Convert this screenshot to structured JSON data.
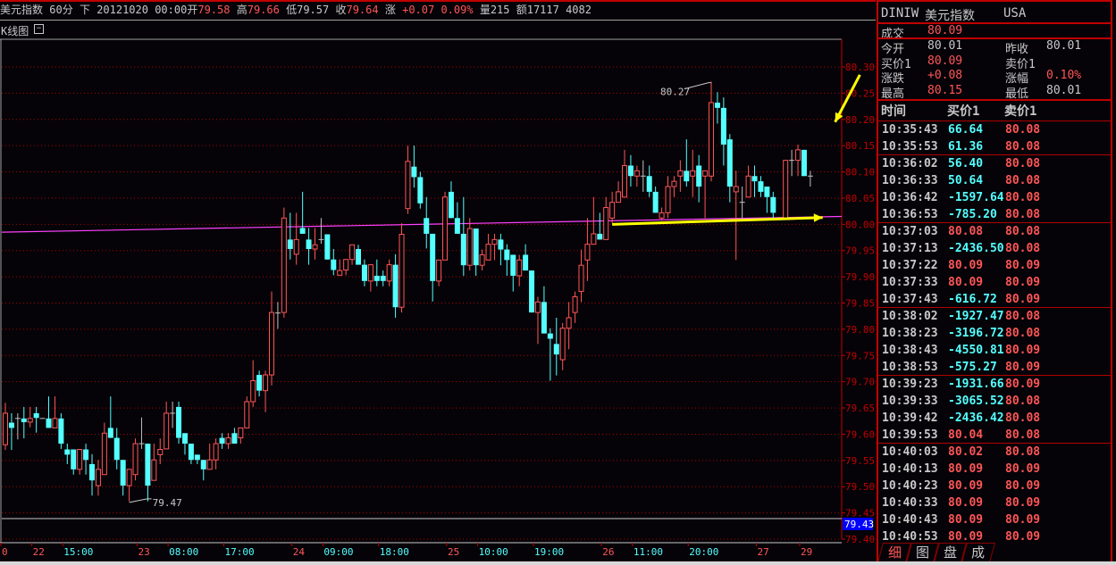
{
  "header": {
    "name": "美元指数",
    "period": "60分",
    "mode": "下",
    "datetime": "20121020 00:00",
    "open_label": "开",
    "open": "79.58",
    "high_label": "高",
    "high": "79.66",
    "low_label": "低",
    "low": "79.57",
    "close_label": "收",
    "close": "79.64",
    "change_label": "涨",
    "change": "+0.07",
    "change_pct": "0.09%",
    "volume": "量215",
    "amount": "额17117 4082"
  },
  "chart_panel": {
    "label": "K线图",
    "collapse_icon": "minus-box-icon"
  },
  "colors": {
    "up": "#ff5656",
    "down": "#54ffff",
    "flat": "#c0c0c0",
    "ma": "#ff40ff",
    "annotation_arrow": "#ffff00",
    "grid": "#b00000",
    "axis": "#c00000"
  },
  "chart_data": {
    "type": "candlestick",
    "ylim": [
      79.4,
      80.3
    ],
    "yticks": [
      "80.30",
      "80.25",
      "80.20",
      "80.15",
      "80.10",
      "80.05",
      "80.00",
      "79.95",
      "79.90",
      "79.85",
      "79.80",
      "79.75",
      "79.70",
      "79.65",
      "79.60",
      "79.55",
      "79.50",
      "79.45",
      "79.40"
    ],
    "current_price_tag": "79.43",
    "grid": "horizontal-dotted",
    "xticks": [
      {
        "label": "0",
        "kind": "date",
        "index": 0
      },
      {
        "label": "22",
        "kind": "date",
        "index": 5
      },
      {
        "label": "15:00",
        "kind": "time",
        "index": 10
      },
      {
        "label": "23",
        "kind": "date",
        "index": 22
      },
      {
        "label": "08:00",
        "kind": "time",
        "index": 27
      },
      {
        "label": "17:00",
        "kind": "time",
        "index": 36
      },
      {
        "label": "24",
        "kind": "date",
        "index": 47
      },
      {
        "label": "09:00",
        "kind": "time",
        "index": 52
      },
      {
        "label": "18:00",
        "kind": "time",
        "index": 61
      },
      {
        "label": "25",
        "kind": "date",
        "index": 72
      },
      {
        "label": "10:00",
        "kind": "time",
        "index": 77
      },
      {
        "label": "19:00",
        "kind": "time",
        "index": 86
      },
      {
        "label": "26",
        "kind": "date",
        "index": 97
      },
      {
        "label": "11:00",
        "kind": "time",
        "index": 102
      },
      {
        "label": "20:00",
        "kind": "time",
        "index": 111
      },
      {
        "label": "27",
        "kind": "date",
        "index": 122
      },
      {
        "label": "29",
        "kind": "date",
        "index": 129
      }
    ],
    "annotations": [
      {
        "label": "80.27",
        "index": 114,
        "value": 80.27
      },
      {
        "label": "79.47",
        "index": 20,
        "value": 79.47
      }
    ],
    "moving_average": {
      "start": 79.985,
      "end": 80.015
    },
    "arrows": [
      {
        "from_index": 138,
        "from_value": 80.285,
        "to_index": 134,
        "to_value": 80.195
      },
      {
        "from_index": 98,
        "from_value": 80.0,
        "to_index": 132,
        "to_value": 80.013
      }
    ],
    "ohlc": [
      [
        79.58,
        79.66,
        79.57,
        79.64
      ],
      [
        79.622,
        79.64,
        79.57,
        79.612
      ],
      [
        79.63,
        79.64,
        79.59,
        79.63
      ],
      [
        79.63,
        79.652,
        79.592,
        79.623
      ],
      [
        79.623,
        79.652,
        79.613,
        79.63
      ],
      [
        79.64,
        79.652,
        79.603,
        79.631
      ],
      [
        79.63,
        79.63,
        79.63,
        79.63
      ],
      [
        79.63,
        79.672,
        79.612,
        79.612
      ],
      [
        79.612,
        79.672,
        79.612,
        79.63
      ],
      [
        79.63,
        79.64,
        79.572,
        79.582
      ],
      [
        79.571,
        79.582,
        79.543,
        79.561
      ],
      [
        79.571,
        79.571,
        79.523,
        79.533
      ],
      [
        79.533,
        79.571,
        79.523,
        79.571
      ],
      [
        79.571,
        79.582,
        79.523,
        79.551
      ],
      [
        79.543,
        79.562,
        79.483,
        79.512
      ],
      [
        79.502,
        79.551,
        79.483,
        79.533
      ],
      [
        79.523,
        79.622,
        79.523,
        79.602
      ],
      [
        79.612,
        79.672,
        79.593,
        79.593
      ],
      [
        79.593,
        79.612,
        79.533,
        79.551
      ],
      [
        79.551,
        79.551,
        79.483,
        79.502
      ],
      [
        79.502,
        79.533,
        79.472,
        79.533
      ],
      [
        79.523,
        79.592,
        79.512,
        79.582
      ],
      [
        79.582,
        79.632,
        79.572,
        79.582
      ],
      [
        79.582,
        79.582,
        79.472,
        79.502
      ],
      [
        79.512,
        79.582,
        79.512,
        79.551
      ],
      [
        79.561,
        79.592,
        79.543,
        79.571
      ],
      [
        79.572,
        79.662,
        79.572,
        79.64
      ],
      [
        79.64,
        79.662,
        79.612,
        79.64
      ],
      [
        79.652,
        79.662,
        79.582,
        79.593
      ],
      [
        79.602,
        79.602,
        79.561,
        79.582
      ],
      [
        79.582,
        79.582,
        79.543,
        79.551
      ],
      [
        79.561,
        79.561,
        79.543,
        79.551
      ],
      [
        79.551,
        79.551,
        79.512,
        79.533
      ],
      [
        79.533,
        79.582,
        79.533,
        79.551
      ],
      [
        79.551,
        79.592,
        79.533,
        79.582
      ],
      [
        79.593,
        79.602,
        79.572,
        79.582
      ],
      [
        79.582,
        79.602,
        79.572,
        79.593
      ],
      [
        79.602,
        79.612,
        79.582,
        79.582
      ],
      [
        79.593,
        79.612,
        79.582,
        79.612
      ],
      [
        79.612,
        79.672,
        79.612,
        79.662
      ],
      [
        79.662,
        79.741,
        79.652,
        79.702
      ],
      [
        79.713,
        79.721,
        79.672,
        79.683
      ],
      [
        79.683,
        79.721,
        79.642,
        79.713
      ],
      [
        79.713,
        79.872,
        79.693,
        79.832
      ],
      [
        79.831,
        79.852,
        79.801,
        79.831
      ],
      [
        79.832,
        80.032,
        79.822,
        80.012
      ],
      [
        79.971,
        80.022,
        79.933,
        79.953
      ],
      [
        79.943,
        80.022,
        79.923,
        79.971
      ],
      [
        79.993,
        80.062,
        79.982,
        79.982
      ],
      [
        79.971,
        79.993,
        79.923,
        79.953
      ],
      [
        79.953,
        79.993,
        79.933,
        79.961
      ],
      [
        79.971,
        80.012,
        79.963,
        79.971
      ],
      [
        79.981,
        79.981,
        79.933,
        79.933
      ],
      [
        79.933,
        79.953,
        79.903,
        79.913
      ],
      [
        79.903,
        79.933,
        79.903,
        79.912
      ],
      [
        79.913,
        79.933,
        79.903,
        79.933
      ],
      [
        79.933,
        79.961,
        79.923,
        79.961
      ],
      [
        79.953,
        79.961,
        79.923,
        79.923
      ],
      [
        79.923,
        79.933,
        79.882,
        79.892
      ],
      [
        79.892,
        79.923,
        79.872,
        79.923
      ],
      [
        79.902,
        79.933,
        79.882,
        79.892
      ],
      [
        79.902,
        79.912,
        79.882,
        79.892
      ],
      [
        79.892,
        79.933,
        79.882,
        79.923
      ],
      [
        79.923,
        79.943,
        79.822,
        79.842
      ],
      [
        79.842,
        80.002,
        79.832,
        79.981
      ],
      [
        80.03,
        80.15,
        80.02,
        80.12
      ],
      [
        80.11,
        80.15,
        80.07,
        80.09
      ],
      [
        80.09,
        80.1,
        80.03,
        80.04
      ],
      [
        80.012,
        80.052,
        79.954,
        79.982
      ],
      [
        79.982,
        79.982,
        79.853,
        79.892
      ],
      [
        79.892,
        79.932,
        79.882,
        79.932
      ],
      [
        79.932,
        80.062,
        79.932,
        80.052
      ],
      [
        80.062,
        80.082,
        80.012,
        80.012
      ],
      [
        80.012,
        80.042,
        79.982,
        79.982
      ],
      [
        79.982,
        80.052,
        79.902,
        79.922
      ],
      [
        79.922,
        80.012,
        79.912,
        79.992
      ],
      [
        79.992,
        79.992,
        79.902,
        79.922
      ],
      [
        79.922,
        79.952,
        79.912,
        79.942
      ],
      [
        79.932,
        79.982,
        79.932,
        79.962
      ],
      [
        79.962,
        79.982,
        79.932,
        79.971
      ],
      [
        79.971,
        79.982,
        79.922,
        79.952
      ],
      [
        79.952,
        79.962,
        79.902,
        79.932
      ],
      [
        79.942,
        79.942,
        79.872,
        79.902
      ],
      [
        79.902,
        79.942,
        79.882,
        79.932
      ],
      [
        79.942,
        79.962,
        79.912,
        79.912
      ],
      [
        79.912,
        79.912,
        79.832,
        79.832
      ],
      [
        79.832,
        79.862,
        79.772,
        79.852
      ],
      [
        79.852,
        79.882,
        79.792,
        79.792
      ],
      [
        79.792,
        79.802,
        79.702,
        79.782
      ],
      [
        79.772,
        79.822,
        79.712,
        79.752
      ],
      [
        79.742,
        79.812,
        79.722,
        79.802
      ],
      [
        79.802,
        79.852,
        79.762,
        79.822
      ],
      [
        79.832,
        79.872,
        79.812,
        79.862
      ],
      [
        79.872,
        79.952,
        79.852,
        79.922
      ],
      [
        79.932,
        80.012,
        79.892,
        79.962
      ],
      [
        79.962,
        80.052,
        79.962,
        79.982
      ],
      [
        79.982,
        80.022,
        79.971,
        79.971
      ],
      [
        79.971,
        80.052,
        79.971,
        80.032
      ],
      [
        80.012,
        80.062,
        80.002,
        80.042
      ],
      [
        80.042,
        80.082,
        80.042,
        80.062
      ],
      [
        80.052,
        80.142,
        80.052,
        80.112
      ],
      [
        80.112,
        80.132,
        80.072,
        80.092
      ],
      [
        80.092,
        80.112,
        80.072,
        80.102
      ],
      [
        80.092,
        80.122,
        80.062,
        80.092
      ],
      [
        80.092,
        80.112,
        80.052,
        80.062
      ],
      [
        80.062,
        80.072,
        80.022,
        80.022
      ],
      [
        80.012,
        80.032,
        80.007,
        80.022
      ],
      [
        80.022,
        80.092,
        80.012,
        80.072
      ],
      [
        80.072,
        80.092,
        80.052,
        80.082
      ],
      [
        80.092,
        80.122,
        80.062,
        80.102
      ],
      [
        80.102,
        80.162,
        80.072,
        80.082
      ],
      [
        80.092,
        80.142,
        80.052,
        80.102
      ],
      [
        80.112,
        80.132,
        80.042,
        80.072
      ],
      [
        80.092,
        80.102,
        80.012,
        80.102
      ],
      [
        80.092,
        80.272,
        80.082,
        80.232
      ],
      [
        80.232,
        80.252,
        80.192,
        80.222
      ],
      [
        80.222,
        80.242,
        80.112,
        80.152
      ],
      [
        80.162,
        80.172,
        80.042,
        80.072
      ],
      [
        80.062,
        80.102,
        79.932,
        80.072
      ],
      [
        80.042,
        80.072,
        80.012,
        80.042
      ],
      [
        80.052,
        80.112,
        80.052,
        80.092
      ],
      [
        80.092,
        80.112,
        80.052,
        80.082
      ],
      [
        80.082,
        80.092,
        80.052,
        80.062
      ],
      [
        80.072,
        80.072,
        80.022,
        80.052
      ],
      [
        80.052,
        80.062,
        80.012,
        80.022
      ],
      [
        80.012,
        80.012,
        80.012,
        80.012
      ],
      [
        80.012,
        80.122,
        80.012,
        80.122
      ],
      [
        80.122,
        80.142,
        80.092,
        80.122
      ],
      [
        80.122,
        80.152,
        80.092,
        80.142
      ],
      [
        80.142,
        80.142,
        80.092,
        80.092
      ],
      [
        80.092,
        80.102,
        80.072,
        80.092
      ]
    ]
  },
  "quote": {
    "code": "DINIW",
    "name": "美元指数",
    "market": "USA",
    "last_label": "成交",
    "last": "80.09",
    "open_label": "今开",
    "open": "80.01",
    "prev_close_label": "昨收",
    "prev_close": "80.01",
    "bid_label": "买价1",
    "bid": "80.09",
    "ask_label": "卖价1",
    "ask": "",
    "change_label": "涨跌",
    "change": "+0.08",
    "change_pct_label": "涨幅",
    "change_pct": "0.10%",
    "high_label": "最高",
    "high": "80.15",
    "low_label": "最低",
    "low": "80.01"
  },
  "ticks": {
    "headers": [
      "时间",
      "买价1",
      "卖价1"
    ],
    "rows": [
      {
        "time": "10:35:43",
        "bid": "66.64",
        "bid_color": "cyan",
        "ask": "80.08",
        "sep": true
      },
      {
        "time": "10:35:53",
        "bid": "61.36",
        "bid_color": "cyan",
        "ask": "80.08"
      },
      {
        "time": "10:36:02",
        "bid": "56.40",
        "bid_color": "cyan",
        "ask": "80.08",
        "sep": true
      },
      {
        "time": "10:36:33",
        "bid": "50.64",
        "bid_color": "cyan",
        "ask": "80.08"
      },
      {
        "time": "10:36:42",
        "bid": "-1597.64",
        "bid_color": "cyan",
        "ask": "80.08"
      },
      {
        "time": "10:36:53",
        "bid": "-785.20",
        "bid_color": "cyan",
        "ask": "80.08"
      },
      {
        "time": "10:37:03",
        "bid": "80.08",
        "bid_color": "red",
        "ask": "80.08",
        "sep": true
      },
      {
        "time": "10:37:13",
        "bid": "-2436.50",
        "bid_color": "cyan",
        "ask": "80.08"
      },
      {
        "time": "10:37:22",
        "bid": "80.09",
        "bid_color": "red",
        "ask": "80.09"
      },
      {
        "time": "10:37:33",
        "bid": "80.09",
        "bid_color": "red",
        "ask": "80.09"
      },
      {
        "time": "10:37:43",
        "bid": "-616.72",
        "bid_color": "cyan",
        "ask": "80.09"
      },
      {
        "time": "10:38:02",
        "bid": "-1927.47",
        "bid_color": "cyan",
        "ask": "80.08",
        "sep": true
      },
      {
        "time": "10:38:23",
        "bid": "-3196.72",
        "bid_color": "cyan",
        "ask": "80.08"
      },
      {
        "time": "10:38:43",
        "bid": "-4550.81",
        "bid_color": "cyan",
        "ask": "80.09"
      },
      {
        "time": "10:38:53",
        "bid": "-575.27",
        "bid_color": "cyan",
        "ask": "80.09"
      },
      {
        "time": "10:39:23",
        "bid": "-1931.66",
        "bid_color": "cyan",
        "ask": "80.09",
        "sep": true
      },
      {
        "time": "10:39:33",
        "bid": "-3065.52",
        "bid_color": "cyan",
        "ask": "80.08"
      },
      {
        "time": "10:39:42",
        "bid": "-2436.42",
        "bid_color": "cyan",
        "ask": "80.08"
      },
      {
        "time": "10:39:53",
        "bid": "80.04",
        "bid_color": "red",
        "ask": "80.08"
      },
      {
        "time": "10:40:03",
        "bid": "80.02",
        "bid_color": "red",
        "ask": "80.08",
        "sep": true
      },
      {
        "time": "10:40:13",
        "bid": "80.09",
        "bid_color": "red",
        "ask": "80.09"
      },
      {
        "time": "10:40:23",
        "bid": "80.09",
        "bid_color": "red",
        "ask": "80.09"
      },
      {
        "time": "10:40:33",
        "bid": "80.09",
        "bid_color": "red",
        "ask": "80.09"
      },
      {
        "time": "10:40:43",
        "bid": "80.09",
        "bid_color": "red",
        "ask": "80.09"
      },
      {
        "time": "10:40:53",
        "bid": "80.09",
        "bid_color": "red",
        "ask": "80.09"
      }
    ]
  },
  "tabs": [
    {
      "label": "细",
      "active": true
    },
    {
      "label": "图"
    },
    {
      "label": "盘"
    },
    {
      "label": "成"
    }
  ]
}
